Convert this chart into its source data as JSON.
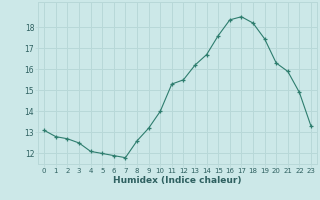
{
  "x": [
    0,
    1,
    2,
    3,
    4,
    5,
    6,
    7,
    8,
    9,
    10,
    11,
    12,
    13,
    14,
    15,
    16,
    17,
    18,
    19,
    20,
    21,
    22,
    23
  ],
  "y": [
    13.1,
    12.8,
    12.7,
    12.5,
    12.1,
    12.0,
    11.9,
    11.8,
    12.6,
    13.2,
    14.0,
    15.3,
    15.5,
    16.2,
    16.7,
    17.6,
    18.35,
    18.5,
    18.2,
    17.45,
    16.3,
    15.9,
    14.9,
    13.3
  ],
  "line_color": "#2e7d6e",
  "marker": "+",
  "bg_color": "#cce8e8",
  "grid_color": "#b8d8d8",
  "xlabel": "Humidex (Indice chaleur)",
  "ylim": [
    11.5,
    19.2
  ],
  "xlim": [
    -0.5,
    23.5
  ],
  "yticks": [
    12,
    13,
    14,
    15,
    16,
    17,
    18
  ],
  "xticks": [
    0,
    1,
    2,
    3,
    4,
    5,
    6,
    7,
    8,
    9,
    10,
    11,
    12,
    13,
    14,
    15,
    16,
    17,
    18,
    19,
    20,
    21,
    22,
    23
  ],
  "xtick_labels": [
    "0",
    "1",
    "2",
    "3",
    "4",
    "5",
    "6",
    "7",
    "8",
    "9",
    "10",
    "11",
    "12",
    "13",
    "14",
    "15",
    "16",
    "17",
    "18",
    "19",
    "20",
    "21",
    "22",
    "23"
  ]
}
